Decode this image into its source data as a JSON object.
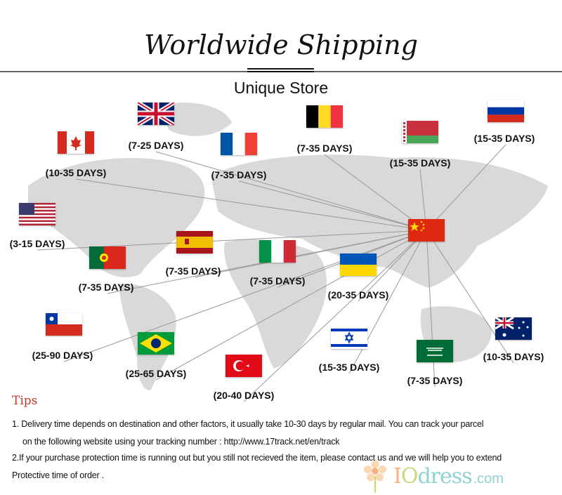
{
  "header": {
    "title": "Worldwide Shipping",
    "subtitle": "Unique Store"
  },
  "hub": {
    "flag": "flag-china"
  },
  "countries": [
    {
      "flag": "flag-uk",
      "days": "(7-25 DAYS)"
    },
    {
      "flag": "flag-canada",
      "days": "(10-35 DAYS)"
    },
    {
      "flag": "flag-france",
      "days": "(7-35 DAYS)"
    },
    {
      "flag": "flag-belgium",
      "days": "(7-35 DAYS)"
    },
    {
      "flag": "flag-belarus",
      "days": "(15-35 DAYS)"
    },
    {
      "flag": "flag-russia",
      "days": "(15-35 DAYS)"
    },
    {
      "flag": "flag-usa",
      "days": "(3-15 DAYS)"
    },
    {
      "flag": "flag-portugal",
      "days": "(7-35 DAYS)"
    },
    {
      "flag": "flag-spain",
      "days": "(7-35 DAYS)"
    },
    {
      "flag": "flag-italy",
      "days": "(7-35 DAYS)"
    },
    {
      "flag": "flag-ukraine",
      "days": "(20-35 DAYS)"
    },
    {
      "flag": "flag-chile",
      "days": "(25-90 DAYS)"
    },
    {
      "flag": "flag-brazil",
      "days": "(25-65 DAYS)"
    },
    {
      "flag": "flag-turkey",
      "days": "(20-40 DAYS)"
    },
    {
      "flag": "flag-israel",
      "days": "(15-35 DAYS)"
    },
    {
      "flag": "flag-saudi-arabia",
      "days": "(7-35 DAYS)"
    },
    {
      "flag": "flag-australia",
      "days": "(10-35 DAYS)"
    }
  ],
  "tips": {
    "heading": "Tips",
    "line1": "1. Delivery time depends on destination and other factors, it usually take 10-30 days by regular mail. You can track your parcel",
    "line2": "on the following website using your tracking number : http://www.17track.net/en/track",
    "line3": "2.If your purchase protection time is running out but you still not recieved the item, please contact us and we will help you to extend",
    "line4": "Protective time of order ."
  },
  "logo": {
    "text": "IOdress.com"
  },
  "colors": {
    "map": "#d6d6d6",
    "lines": "#999999",
    "tips_heading": "#c0392b"
  }
}
